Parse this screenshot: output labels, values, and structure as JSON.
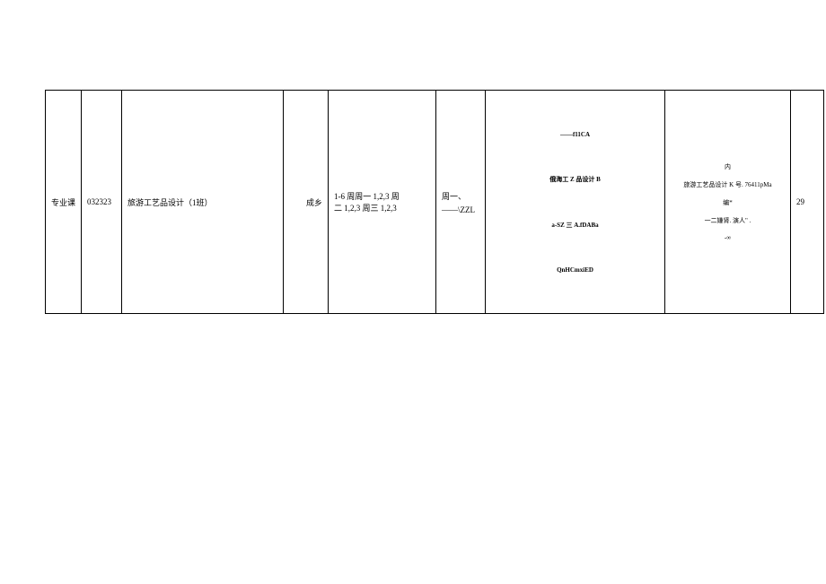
{
  "table": {
    "row": {
      "col1": "专业课",
      "col2": "032323",
      "col3": "旅游工艺品设计（1班）",
      "col4": "成乡",
      "col5_line1": "1-6 周周一 1,2,3 周",
      "col5_line2": "二 1,2,3 周三 1,2,3",
      "col6_line1": "周一、",
      "col6_line2": "——\\ZZL",
      "col7_item1": "——f11CA",
      "col7_item2": "俄海工 Z 品设计 B",
      "col7_item3": "a-SZ 三 A.fDABa",
      "col7_item4": "QnHCmxiED",
      "col8_item1": "内",
      "col8_item2": "旅游工艺品设计 K 号. 76411pMa",
      "col8_item3": "编*",
      "col8_item4": "一二嫌肾. 演人\" .",
      "col8_item5": "-∞",
      "col9": "29"
    }
  }
}
